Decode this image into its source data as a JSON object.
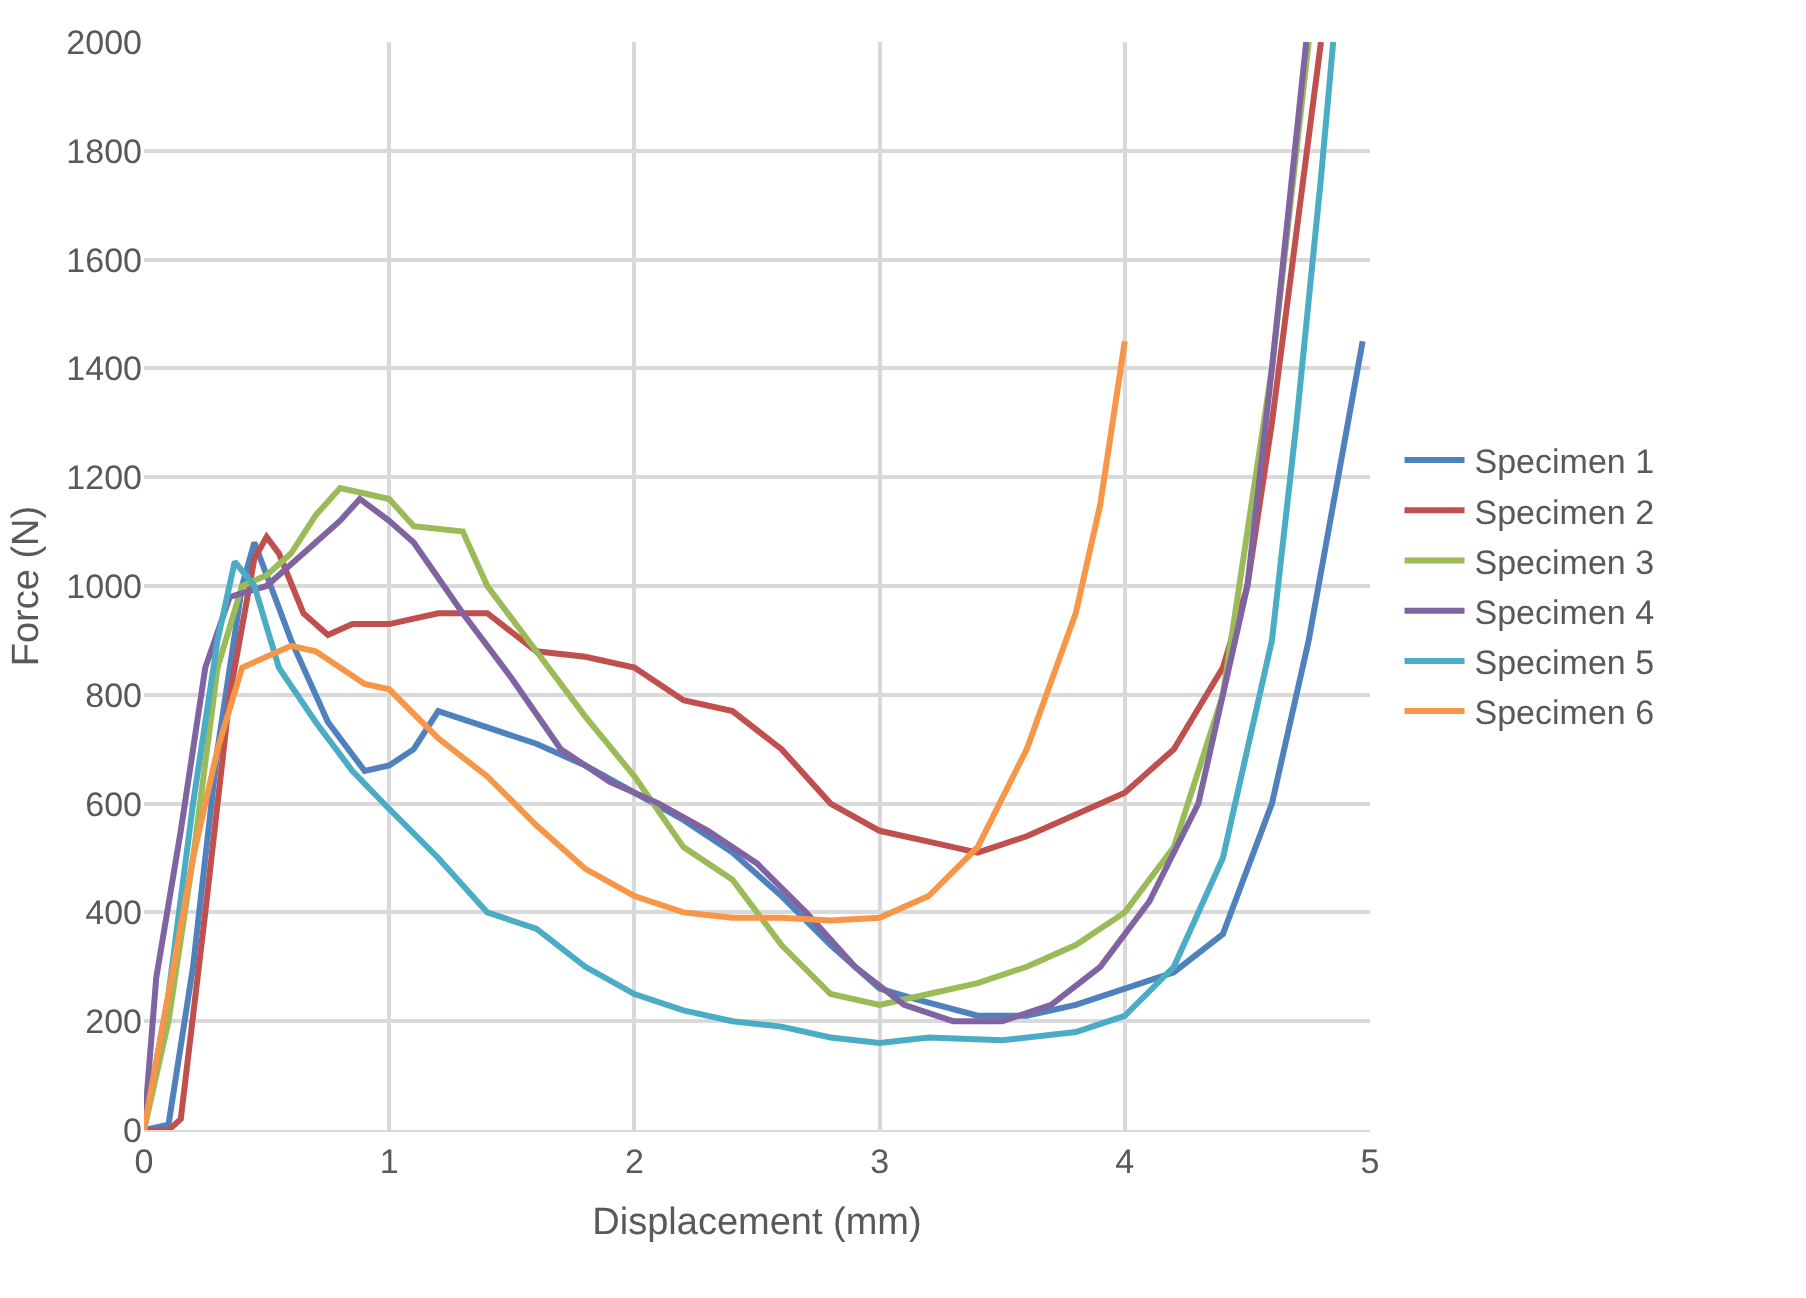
{
  "chart_data": {
    "type": "line",
    "xlabel": "Displacement (mm)",
    "ylabel": "Force (N)",
    "xlim": [
      0,
      5
    ],
    "ylim": [
      0,
      2000
    ],
    "xticks": [
      0,
      1,
      2,
      3,
      4,
      5
    ],
    "yticks": [
      0,
      200,
      400,
      600,
      800,
      1000,
      1200,
      1400,
      1600,
      1800,
      2000
    ],
    "grid": true,
    "legend": "right",
    "line_style": "solid",
    "marker": "none",
    "series": [
      {
        "name": "Specimen 1",
        "color": "#4f81bd",
        "x": [
          0,
          0.1,
          0.2,
          0.3,
          0.4,
          0.45,
          0.6,
          0.75,
          0.9,
          1.0,
          1.1,
          1.2,
          1.4,
          1.6,
          1.8,
          2.0,
          2.2,
          2.4,
          2.6,
          2.8,
          3.0,
          3.15,
          3.4,
          3.6,
          3.8,
          4.0,
          4.2,
          4.4,
          4.6,
          4.75,
          4.85,
          4.97
        ],
        "values": [
          0,
          10,
          300,
          700,
          1000,
          1080,
          900,
          750,
          660,
          670,
          700,
          770,
          740,
          710,
          670,
          620,
          570,
          510,
          430,
          340,
          260,
          240,
          210,
          210,
          230,
          260,
          290,
          360,
          600,
          900,
          1150,
          1450
        ]
      },
      {
        "name": "Specimen 2",
        "color": "#c0504d",
        "x": [
          0,
          0.1,
          0.15,
          0.25,
          0.35,
          0.45,
          0.5,
          0.55,
          0.65,
          0.75,
          0.85,
          1.0,
          1.2,
          1.4,
          1.6,
          1.8,
          2.0,
          2.2,
          2.4,
          2.6,
          2.8,
          3.0,
          3.2,
          3.4,
          3.6,
          3.8,
          4.0,
          4.2,
          4.4,
          4.5,
          4.6,
          4.7,
          4.8
        ],
        "values": [
          0,
          0,
          20,
          400,
          800,
          1050,
          1090,
          1060,
          950,
          910,
          930,
          930,
          950,
          950,
          880,
          870,
          850,
          790,
          770,
          700,
          600,
          550,
          530,
          510,
          540,
          580,
          620,
          700,
          850,
          1000,
          1300,
          1650,
          2000
        ]
      },
      {
        "name": "Specimen 3",
        "color": "#9bbb59",
        "x": [
          0,
          0.1,
          0.2,
          0.3,
          0.4,
          0.5,
          0.6,
          0.7,
          0.8,
          0.9,
          1.0,
          1.1,
          1.3,
          1.4,
          1.6,
          1.8,
          2.0,
          2.2,
          2.4,
          2.6,
          2.8,
          3.0,
          3.2,
          3.4,
          3.6,
          3.8,
          4.0,
          4.2,
          4.4,
          4.6,
          4.75
        ],
        "values": [
          0,
          200,
          500,
          850,
          1000,
          1020,
          1060,
          1130,
          1180,
          1170,
          1160,
          1110,
          1100,
          1000,
          880,
          760,
          650,
          520,
          460,
          340,
          250,
          230,
          250,
          270,
          300,
          340,
          400,
          520,
          800,
          1400,
          2000
        ]
      },
      {
        "name": "Specimen 4",
        "color": "#8064a2",
        "x": [
          0,
          0.05,
          0.15,
          0.25,
          0.35,
          0.5,
          0.6,
          0.7,
          0.8,
          0.88,
          1.0,
          1.1,
          1.3,
          1.5,
          1.7,
          1.9,
          2.1,
          2.3,
          2.5,
          2.7,
          2.9,
          3.1,
          3.3,
          3.5,
          3.7,
          3.9,
          4.1,
          4.3,
          4.5,
          4.6,
          4.74
        ],
        "values": [
          0,
          280,
          550,
          850,
          980,
          1000,
          1040,
          1080,
          1120,
          1160,
          1120,
          1080,
          950,
          830,
          700,
          640,
          600,
          550,
          490,
          400,
          300,
          230,
          200,
          200,
          230,
          300,
          420,
          600,
          1000,
          1400,
          2000
        ]
      },
      {
        "name": "Specimen 5",
        "color": "#4bacc6",
        "x": [
          0,
          0.1,
          0.2,
          0.3,
          0.37,
          0.45,
          0.55,
          0.7,
          0.85,
          1.0,
          1.2,
          1.4,
          1.6,
          1.8,
          2.0,
          2.2,
          2.4,
          2.6,
          2.8,
          3.0,
          3.2,
          3.5,
          3.8,
          4.0,
          4.2,
          4.4,
          4.6,
          4.7,
          4.8,
          4.85
        ],
        "values": [
          0,
          250,
          600,
          900,
          1045,
          1000,
          850,
          750,
          660,
          590,
          500,
          400,
          370,
          300,
          250,
          220,
          200,
          190,
          170,
          160,
          170,
          165,
          180,
          210,
          300,
          500,
          900,
          1300,
          1750,
          2000
        ]
      },
      {
        "name": "Specimen 6",
        "color": "#f79646",
        "x": [
          0,
          0.1,
          0.2,
          0.3,
          0.4,
          0.6,
          0.7,
          0.9,
          1.0,
          1.2,
          1.4,
          1.6,
          1.8,
          2.0,
          2.2,
          2.4,
          2.6,
          2.8,
          3.0,
          3.2,
          3.4,
          3.6,
          3.8,
          3.9,
          4.0
        ],
        "values": [
          0,
          250,
          500,
          700,
          850,
          890,
          880,
          820,
          810,
          720,
          650,
          560,
          480,
          430,
          400,
          390,
          390,
          385,
          390,
          430,
          520,
          700,
          950,
          1150,
          1450
        ]
      }
    ]
  }
}
